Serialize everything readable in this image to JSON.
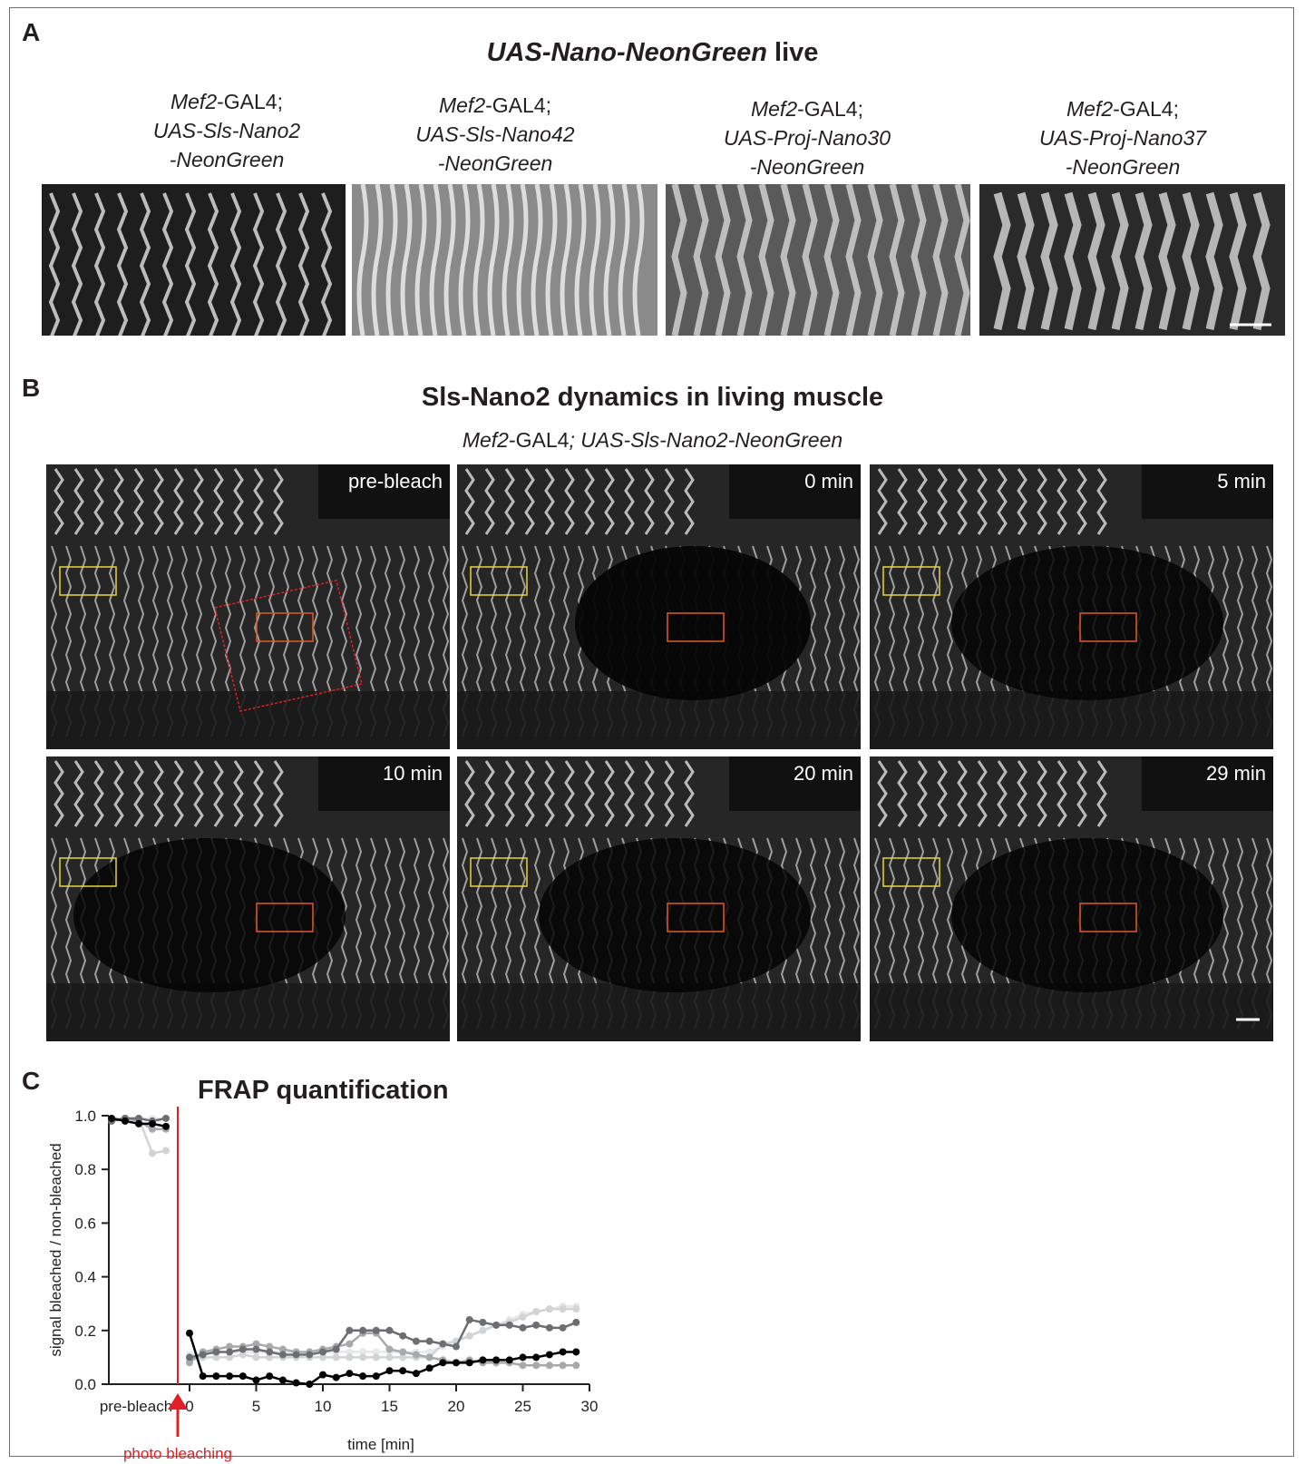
{
  "panel_a": {
    "letter": "A",
    "title_italic": "UAS-Nano-NeonGreen",
    "title_rest": " live",
    "constructs": [
      {
        "line1_italic": "Mef2",
        "line1_rest": "-GAL4;",
        "line2": "UAS-Sls-Nano2",
        "line3": "-NeonGreen"
      },
      {
        "line1_italic": "Mef2",
        "line1_rest": "-GAL4;",
        "line2": "UAS-Sls-Nano42",
        "line3": "-NeonGreen"
      },
      {
        "line1_italic": "Mef2",
        "line1_rest": "-GAL4;",
        "line2": "UAS-Proj-Nano30",
        "line3": "-NeonGreen"
      },
      {
        "line1_italic": "Mef2",
        "line1_rest": "-GAL4;",
        "line2": "UAS-Proj-Nano37",
        "line3": "-NeonGreen"
      }
    ]
  },
  "panel_b": {
    "letter": "B",
    "title": "Sls-Nano2 dynamics in living muscle",
    "genotype_italic1": "Mef2",
    "genotype_plain": "-GAL4",
    "genotype_italic2": "; UAS-Sls-Nano2-NeonGreen",
    "timepoints": [
      "pre-bleach",
      "0 min",
      "5 min",
      "10 min",
      "20 min",
      "29 min"
    ]
  },
  "panel_c": {
    "letter": "C",
    "title": "FRAP quantification",
    "annotation": "photo bleaching",
    "annotation_color": "#e31e24"
  },
  "chart_data": {
    "type": "line",
    "title": "FRAP quantification",
    "xlabel": "time [min]",
    "ylabel": "signal bleached / non-bleached",
    "xlim": [
      -1,
      30
    ],
    "ylim": [
      0,
      1.0
    ],
    "x_ticks": [
      0,
      5,
      10,
      15,
      20,
      25,
      30
    ],
    "y_ticks": [
      0.0,
      0.2,
      0.4,
      0.6,
      0.8,
      1.0
    ],
    "x_tick_labels": [
      "0",
      "5",
      "10",
      "15",
      "20",
      "25",
      "30"
    ],
    "y_tick_labels": [
      "0.0",
      "0.2",
      "0.4",
      "0.6",
      "0.8",
      "1.0"
    ],
    "pre_label": "pre-bleach",
    "bleach_line_color": "#e31e24",
    "series": [
      {
        "color": "#000000",
        "pre": [
          [
            0,
            0.99
          ],
          [
            1,
            0.98
          ],
          [
            2,
            0.97
          ],
          [
            3,
            0.97
          ],
          [
            4,
            0.96
          ]
        ],
        "x": [
          0,
          1,
          2,
          3,
          4,
          5,
          6,
          7,
          8,
          9,
          10,
          11,
          12,
          13,
          14,
          15,
          16,
          17,
          18,
          19,
          20,
          21,
          22,
          23,
          24,
          25,
          26,
          27,
          28,
          29
        ],
        "values": [
          0.19,
          0.03,
          0.03,
          0.03,
          0.03,
          0.015,
          0.03,
          0.015,
          0.005,
          0.0,
          0.035,
          0.025,
          0.04,
          0.03,
          0.03,
          0.05,
          0.05,
          0.04,
          0.06,
          0.08,
          0.08,
          0.08,
          0.09,
          0.09,
          0.09,
          0.1,
          0.1,
          0.11,
          0.12,
          0.12
        ]
      },
      {
        "color": "#6d6e71",
        "pre": [
          [
            0,
            0.98
          ],
          [
            1,
            0.99
          ],
          [
            2,
            0.99
          ],
          [
            3,
            0.98
          ],
          [
            4,
            0.99
          ]
        ],
        "x": [
          0,
          1,
          2,
          3,
          4,
          5,
          6,
          7,
          8,
          9,
          10,
          11,
          12,
          13,
          14,
          15,
          16,
          17,
          18,
          19,
          20,
          21,
          22,
          23,
          24,
          25,
          26,
          27,
          28,
          29
        ],
        "values": [
          0.1,
          0.11,
          0.12,
          0.12,
          0.13,
          0.13,
          0.12,
          0.11,
          0.11,
          0.11,
          0.12,
          0.13,
          0.2,
          0.2,
          0.2,
          0.2,
          0.18,
          0.16,
          0.16,
          0.15,
          0.14,
          0.24,
          0.23,
          0.22,
          0.22,
          0.21,
          0.22,
          0.21,
          0.21,
          0.23
        ]
      },
      {
        "color": "#a7a9ac",
        "pre": [
          [
            0,
            0.98
          ],
          [
            1,
            0.99
          ],
          [
            2,
            0.98
          ],
          [
            3,
            0.95
          ],
          [
            4,
            0.95
          ]
        ],
        "x": [
          0,
          1,
          2,
          3,
          4,
          5,
          6,
          7,
          8,
          9,
          10,
          11,
          12,
          13,
          14,
          15,
          16,
          17,
          18,
          19,
          20,
          21,
          22,
          23,
          24,
          25,
          26,
          27,
          28,
          29
        ],
        "values": [
          0.08,
          0.12,
          0.13,
          0.14,
          0.14,
          0.15,
          0.14,
          0.13,
          0.12,
          0.12,
          0.13,
          0.14,
          0.15,
          0.19,
          0.19,
          0.13,
          0.12,
          0.11,
          0.1,
          0.09,
          0.08,
          0.09,
          0.08,
          0.08,
          0.08,
          0.07,
          0.07,
          0.07,
          0.07,
          0.07
        ]
      },
      {
        "color": "#d1d3d4",
        "pre": [
          [
            0,
            0.99
          ],
          [
            1,
            0.99
          ],
          [
            2,
            0.99
          ],
          [
            3,
            0.86
          ],
          [
            4,
            0.87
          ]
        ],
        "x": [
          0,
          1,
          2,
          3,
          4,
          5,
          6,
          7,
          8,
          9,
          10,
          11,
          12,
          13,
          14,
          15,
          16,
          17,
          18,
          19,
          20,
          21,
          22,
          23,
          24,
          25,
          26,
          27,
          28,
          29
        ],
        "values": [
          0.09,
          0.1,
          0.1,
          0.1,
          0.11,
          0.1,
          0.1,
          0.1,
          0.1,
          0.1,
          0.1,
          0.1,
          0.1,
          0.1,
          0.1,
          0.1,
          0.1,
          0.1,
          0.1,
          0.15,
          0.16,
          0.18,
          0.2,
          0.22,
          0.23,
          0.25,
          0.27,
          0.28,
          0.28,
          0.28
        ]
      },
      {
        "color": "#e6e7e8",
        "pre": [
          [
            0,
            0.99
          ],
          [
            1,
            0.99
          ],
          [
            2,
            0.99
          ],
          [
            3,
            0.99
          ],
          [
            4,
            0.99
          ]
        ],
        "x": [
          0,
          1,
          2,
          3,
          4,
          5,
          6,
          7,
          8,
          9,
          10,
          11,
          12,
          13,
          14,
          15,
          16,
          17,
          18,
          19,
          20,
          21,
          22,
          23,
          24,
          25,
          26,
          27,
          28,
          29
        ],
        "values": [
          0.11,
          0.12,
          0.12,
          0.12,
          0.12,
          0.12,
          0.12,
          0.12,
          0.12,
          0.12,
          0.12,
          0.12,
          0.12,
          0.12,
          0.12,
          0.12,
          0.12,
          0.12,
          0.12,
          0.14,
          0.16,
          0.18,
          0.2,
          0.22,
          0.24,
          0.26,
          0.27,
          0.28,
          0.29,
          0.29
        ]
      }
    ]
  },
  "colors": {
    "yellow_roi": "#e8d33a",
    "orange_roi": "#e0592a",
    "bleach_roi": "#e31e24"
  }
}
